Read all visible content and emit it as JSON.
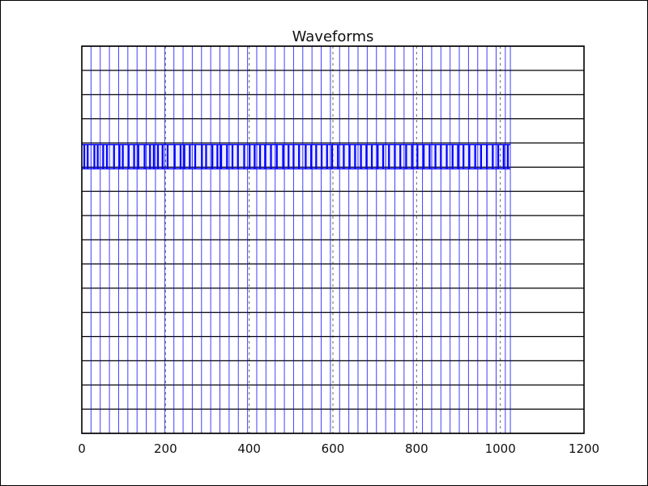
{
  "chart_data": {
    "type": "line",
    "title": "Waveforms",
    "xlabel": "",
    "ylabel": "",
    "xlim": [
      0,
      1200
    ],
    "xticks": [
      0,
      200,
      400,
      600,
      800,
      1000,
      1200
    ],
    "xtick_labels": [
      "0",
      "200",
      "400",
      "600",
      "800",
      "1000",
      "1200"
    ],
    "y_rows": 16,
    "grid": true,
    "series": [
      {
        "color": "#0000ff",
        "trace_x": [
          0,
          1024
        ],
        "trace_row_band": [
          4,
          5
        ],
        "x_dividers": [
          0,
          22,
          44,
          66,
          88,
          110,
          132,
          154,
          176,
          198,
          220,
          242,
          264,
          286,
          308,
          330,
          352,
          374,
          396,
          418,
          440,
          462,
          484,
          506,
          528,
          550,
          572,
          594,
          616,
          638,
          660,
          682,
          704,
          726,
          748,
          770,
          792,
          814,
          836,
          858,
          880,
          902,
          924,
          946,
          968,
          990,
          1012,
          1024
        ],
        "pulse_x": [
          6,
          14,
          30,
          38,
          51,
          60,
          77,
          90,
          98,
          112,
          125,
          135,
          150,
          163,
          172,
          182,
          193,
          205,
          222,
          236,
          245,
          258,
          271,
          287,
          297,
          312,
          324,
          333,
          347,
          360,
          373,
          388,
          401,
          413,
          426,
          438,
          452,
          466,
          481,
          494,
          506,
          519,
          535,
          548,
          560,
          573,
          586,
          598,
          612,
          626,
          640,
          653,
          667,
          680,
          693,
          707,
          720,
          734,
          748,
          761,
          775,
          789,
          802,
          817,
          831,
          845,
          858,
          872,
          886,
          899,
          912,
          926,
          940,
          954,
          968,
          982,
          995,
          1008,
          1018
        ]
      }
    ]
  }
}
